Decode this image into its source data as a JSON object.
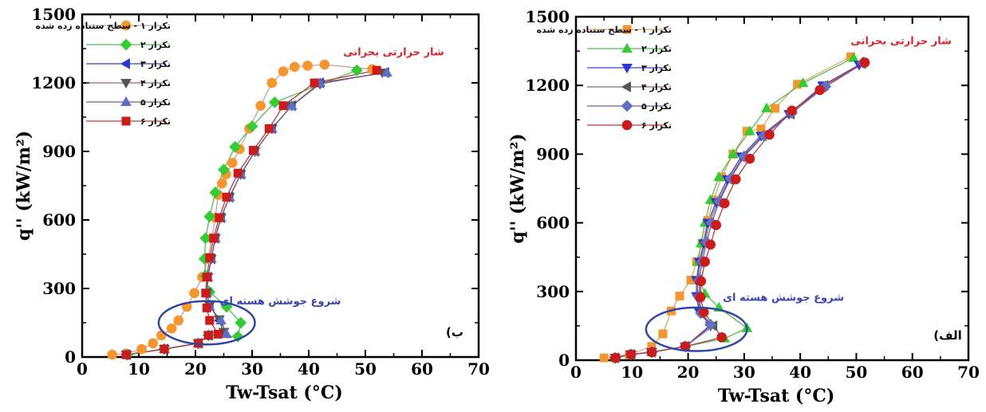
{
  "chart_data": [
    {
      "type": "line",
      "panel_label": "ب)",
      "xlabel": "Tw-Tsat (°C)",
      "ylabel": "q'' (kW/m²)",
      "xlim": [
        0,
        70
      ],
      "ylim": [
        0,
        1500
      ],
      "xticks": [
        0,
        10,
        20,
        30,
        40,
        50,
        60,
        70
      ],
      "yticks": [
        0,
        300,
        600,
        900,
        1200,
        1500
      ],
      "grid": false,
      "legend_position": "top-left",
      "annotations": [
        {
          "text": "شار حرارتی بحرانی",
          "x": 55,
          "y": 1320,
          "color": "#d9262b"
        },
        {
          "text": "شروع جوشش هسته ای",
          "x": 35,
          "y": 230,
          "color": "#3a45b4"
        }
      ],
      "ellipse": {
        "cx": 22,
        "cy": 150,
        "rx": 8.5,
        "ry": 95,
        "color": "#2f45a8"
      },
      "series": [
        {
          "name": "تکرار ۱ - سطح سنباده زده شده",
          "marker": "circle",
          "color": "#f5962e",
          "line_color": "#c9a0a0",
          "x": [
            5.3,
            7.8,
            10.5,
            12.5,
            14,
            15.8,
            17,
            18.5,
            19.8,
            21.2,
            22.2,
            22.9,
            23.5,
            24,
            24.7,
            25.4,
            26.5,
            27.8,
            29.5,
            31.5,
            33.5,
            35.5,
            37.5,
            39.8,
            42.8,
            51.2
          ],
          "y": [
            10,
            15,
            35,
            60,
            95,
            125,
            160,
            220,
            280,
            350,
            430,
            520,
            610,
            710,
            760,
            800,
            850,
            910,
            1000,
            1100,
            1200,
            1250,
            1270,
            1275,
            1280,
            1260
          ]
        },
        {
          "name": "تکرار ۲",
          "marker": "diamond",
          "color": "#33cc33",
          "line_color": "#55bb55",
          "x": [
            8,
            14.5,
            20.5,
            22.3,
            27.5,
            28,
            25.5,
            22.5,
            21.8,
            21.6,
            21.8,
            22.5,
            23.5,
            25,
            27,
            30,
            34,
            48.5
          ],
          "y": [
            10,
            35,
            60,
            95,
            90,
            150,
            220,
            285,
            355,
            430,
            520,
            615,
            720,
            820,
            920,
            1010,
            1115,
            1255
          ]
        },
        {
          "name": "تکرار ۳",
          "marker": "triangle-left",
          "color": "#2a36d6",
          "line_color": "#3a45c4",
          "x": [
            7.8,
            14.5,
            20.5,
            22.3,
            25,
            24.2,
            22.5,
            22,
            22.2,
            22.8,
            23.5,
            24.5,
            26,
            28,
            30.5,
            33.5,
            37,
            42,
            53.5
          ],
          "y": [
            10,
            35,
            60,
            95,
            105,
            160,
            225,
            280,
            350,
            430,
            520,
            610,
            700,
            800,
            900,
            1000,
            1100,
            1200,
            1245
          ]
        },
        {
          "name": "تکرار ۴",
          "marker": "triangle-down",
          "color": "#555555",
          "line_color": "#8a6a7a",
          "x": [
            7.8,
            14.5,
            20.5,
            22.3,
            25,
            24.2,
            22.5,
            22,
            22.2,
            22.8,
            23.5,
            24.5,
            26,
            28,
            30.5,
            33.5,
            37,
            42,
            53
          ],
          "y": [
            10,
            35,
            60,
            95,
            110,
            165,
            225,
            280,
            350,
            430,
            520,
            610,
            700,
            800,
            900,
            1000,
            1100,
            1195,
            1245
          ]
        },
        {
          "name": "تکرار ۵",
          "marker": "triangle-up",
          "color": "#5b6fc4",
          "line_color": "#7a5a7a",
          "x": [
            7.8,
            14.5,
            20.5,
            22.3,
            25.5,
            24.5,
            22.5,
            22,
            22.2,
            22.8,
            23.5,
            24.5,
            26,
            28,
            30.5,
            33.5,
            37,
            42,
            53.8
          ],
          "y": [
            10,
            35,
            60,
            95,
            100,
            160,
            220,
            280,
            350,
            430,
            520,
            610,
            700,
            800,
            900,
            1000,
            1100,
            1200,
            1245
          ]
        },
        {
          "name": "تکرار ۶",
          "marker": "square",
          "color": "#cc1b1b",
          "line_color": "#b33a3a",
          "x": [
            7.8,
            14.5,
            20.5,
            22.3,
            24,
            22.5,
            22,
            21.8,
            22,
            22.5,
            23.2,
            24.2,
            25.5,
            27.5,
            30.2,
            33,
            35.5,
            41,
            52
          ],
          "y": [
            10,
            35,
            60,
            95,
            100,
            160,
            215,
            280,
            350,
            435,
            520,
            610,
            700,
            805,
            905,
            1000,
            1100,
            1200,
            1255
          ]
        }
      ]
    },
    {
      "type": "line",
      "panel_label": "الف)",
      "xlabel": "Tw-Tsat (°C)",
      "ylabel": "q'' (kW/m²)",
      "xlim": [
        0,
        70
      ],
      "ylim": [
        0,
        1500
      ],
      "xticks": [
        0,
        10,
        20,
        30,
        40,
        50,
        60,
        70
      ],
      "yticks": [
        0,
        300,
        600,
        900,
        1200,
        1500
      ],
      "grid": false,
      "legend_position": "top-left",
      "annotations": [
        {
          "text": "شار حرارتی بحرانی",
          "x": 58,
          "y": 1380,
          "color": "#d9262b"
        },
        {
          "text": "شروع جوشش هسته ای",
          "x": 37,
          "y": 260,
          "color": "#3a45b4"
        }
      ],
      "ellipse": {
        "cx": 21.5,
        "cy": 135,
        "rx": 9,
        "ry": 95,
        "color": "#2f45a8"
      },
      "series": [
        {
          "name": "تکرار ۱ - سطح سنباده زده شده",
          "marker": "square",
          "color": "#f5962e",
          "line_color": "#d8a870",
          "x": [
            5,
            9.5,
            13.5,
            15.5,
            17,
            18.5,
            20.5,
            21.5,
            22.5,
            23.5,
            24.5,
            26,
            28,
            30.5,
            33,
            35.5,
            39.5,
            49
          ],
          "y": [
            10,
            25,
            60,
            115,
            215,
            280,
            350,
            430,
            510,
            610,
            700,
            800,
            900,
            1000,
            1010,
            1100,
            1205,
            1325
          ]
        },
        {
          "name": "تکرار ۲",
          "marker": "triangle-up",
          "color": "#33cc33",
          "line_color": "#55bb55",
          "x": [
            7,
            9.8,
            13.5,
            19.5,
            26.5,
            30.5,
            25.5,
            23,
            22,
            21.8,
            22.3,
            23,
            24,
            25.5,
            28,
            31,
            34,
            40.5,
            49.5
          ],
          "y": [
            10,
            25,
            35,
            60,
            95,
            140,
            230,
            290,
            355,
            430,
            510,
            600,
            700,
            800,
            900,
            1000,
            1100,
            1210,
            1320
          ]
        },
        {
          "name": "تکرار ۳",
          "marker": "triangle-down",
          "color": "#2a36d6",
          "line_color": "#3a45c4",
          "x": [
            7,
            9.8,
            13.5,
            19.5,
            24,
            22,
            21.5,
            21.5,
            22,
            22.8,
            23.5,
            25,
            27,
            29.5,
            33,
            38,
            44,
            50.5
          ],
          "y": [
            10,
            25,
            35,
            60,
            150,
            210,
            280,
            350,
            430,
            510,
            600,
            690,
            790,
            890,
            980,
            1075,
            1200,
            1290
          ]
        },
        {
          "name": "تکرار ۴",
          "marker": "triangle-left",
          "color": "#555555",
          "line_color": "#8a6a7a",
          "x": [
            7,
            9.8,
            13.5,
            19.5,
            24.5,
            22.2,
            21.7,
            21.7,
            22.2,
            23,
            23.8,
            25.3,
            27.3,
            29.8,
            33.3,
            38.3,
            44.3,
            51
          ],
          "y": [
            10,
            25,
            35,
            60,
            150,
            205,
            280,
            350,
            430,
            510,
            600,
            690,
            790,
            890,
            980,
            1075,
            1200,
            1295
          ]
        },
        {
          "name": "تکرار ۵",
          "marker": "diamond",
          "color": "#6670c0",
          "line_color": "#7a5a9a",
          "x": [
            7,
            9.8,
            13.5,
            19.5,
            24,
            22.3,
            22,
            22,
            22.5,
            23.3,
            24.2,
            25.6,
            27.6,
            30,
            33.5,
            38.5,
            44.5,
            51.2
          ],
          "y": [
            10,
            25,
            35,
            60,
            155,
            205,
            280,
            350,
            430,
            515,
            600,
            695,
            795,
            890,
            980,
            1080,
            1195,
            1300
          ]
        },
        {
          "name": "تکرار ۶",
          "marker": "circle",
          "color": "#cc1b1b",
          "line_color": "#b33a3a",
          "x": [
            7,
            9.8,
            13.5,
            19.5,
            26,
            22.8,
            22.2,
            22.3,
            23,
            24,
            25,
            26.5,
            28.5,
            31,
            34.5,
            38.5,
            43.5,
            51.5
          ],
          "y": [
            10,
            25,
            35,
            60,
            100,
            210,
            275,
            345,
            430,
            505,
            590,
            685,
            790,
            880,
            985,
            1090,
            1180,
            1300
          ]
        }
      ]
    }
  ]
}
